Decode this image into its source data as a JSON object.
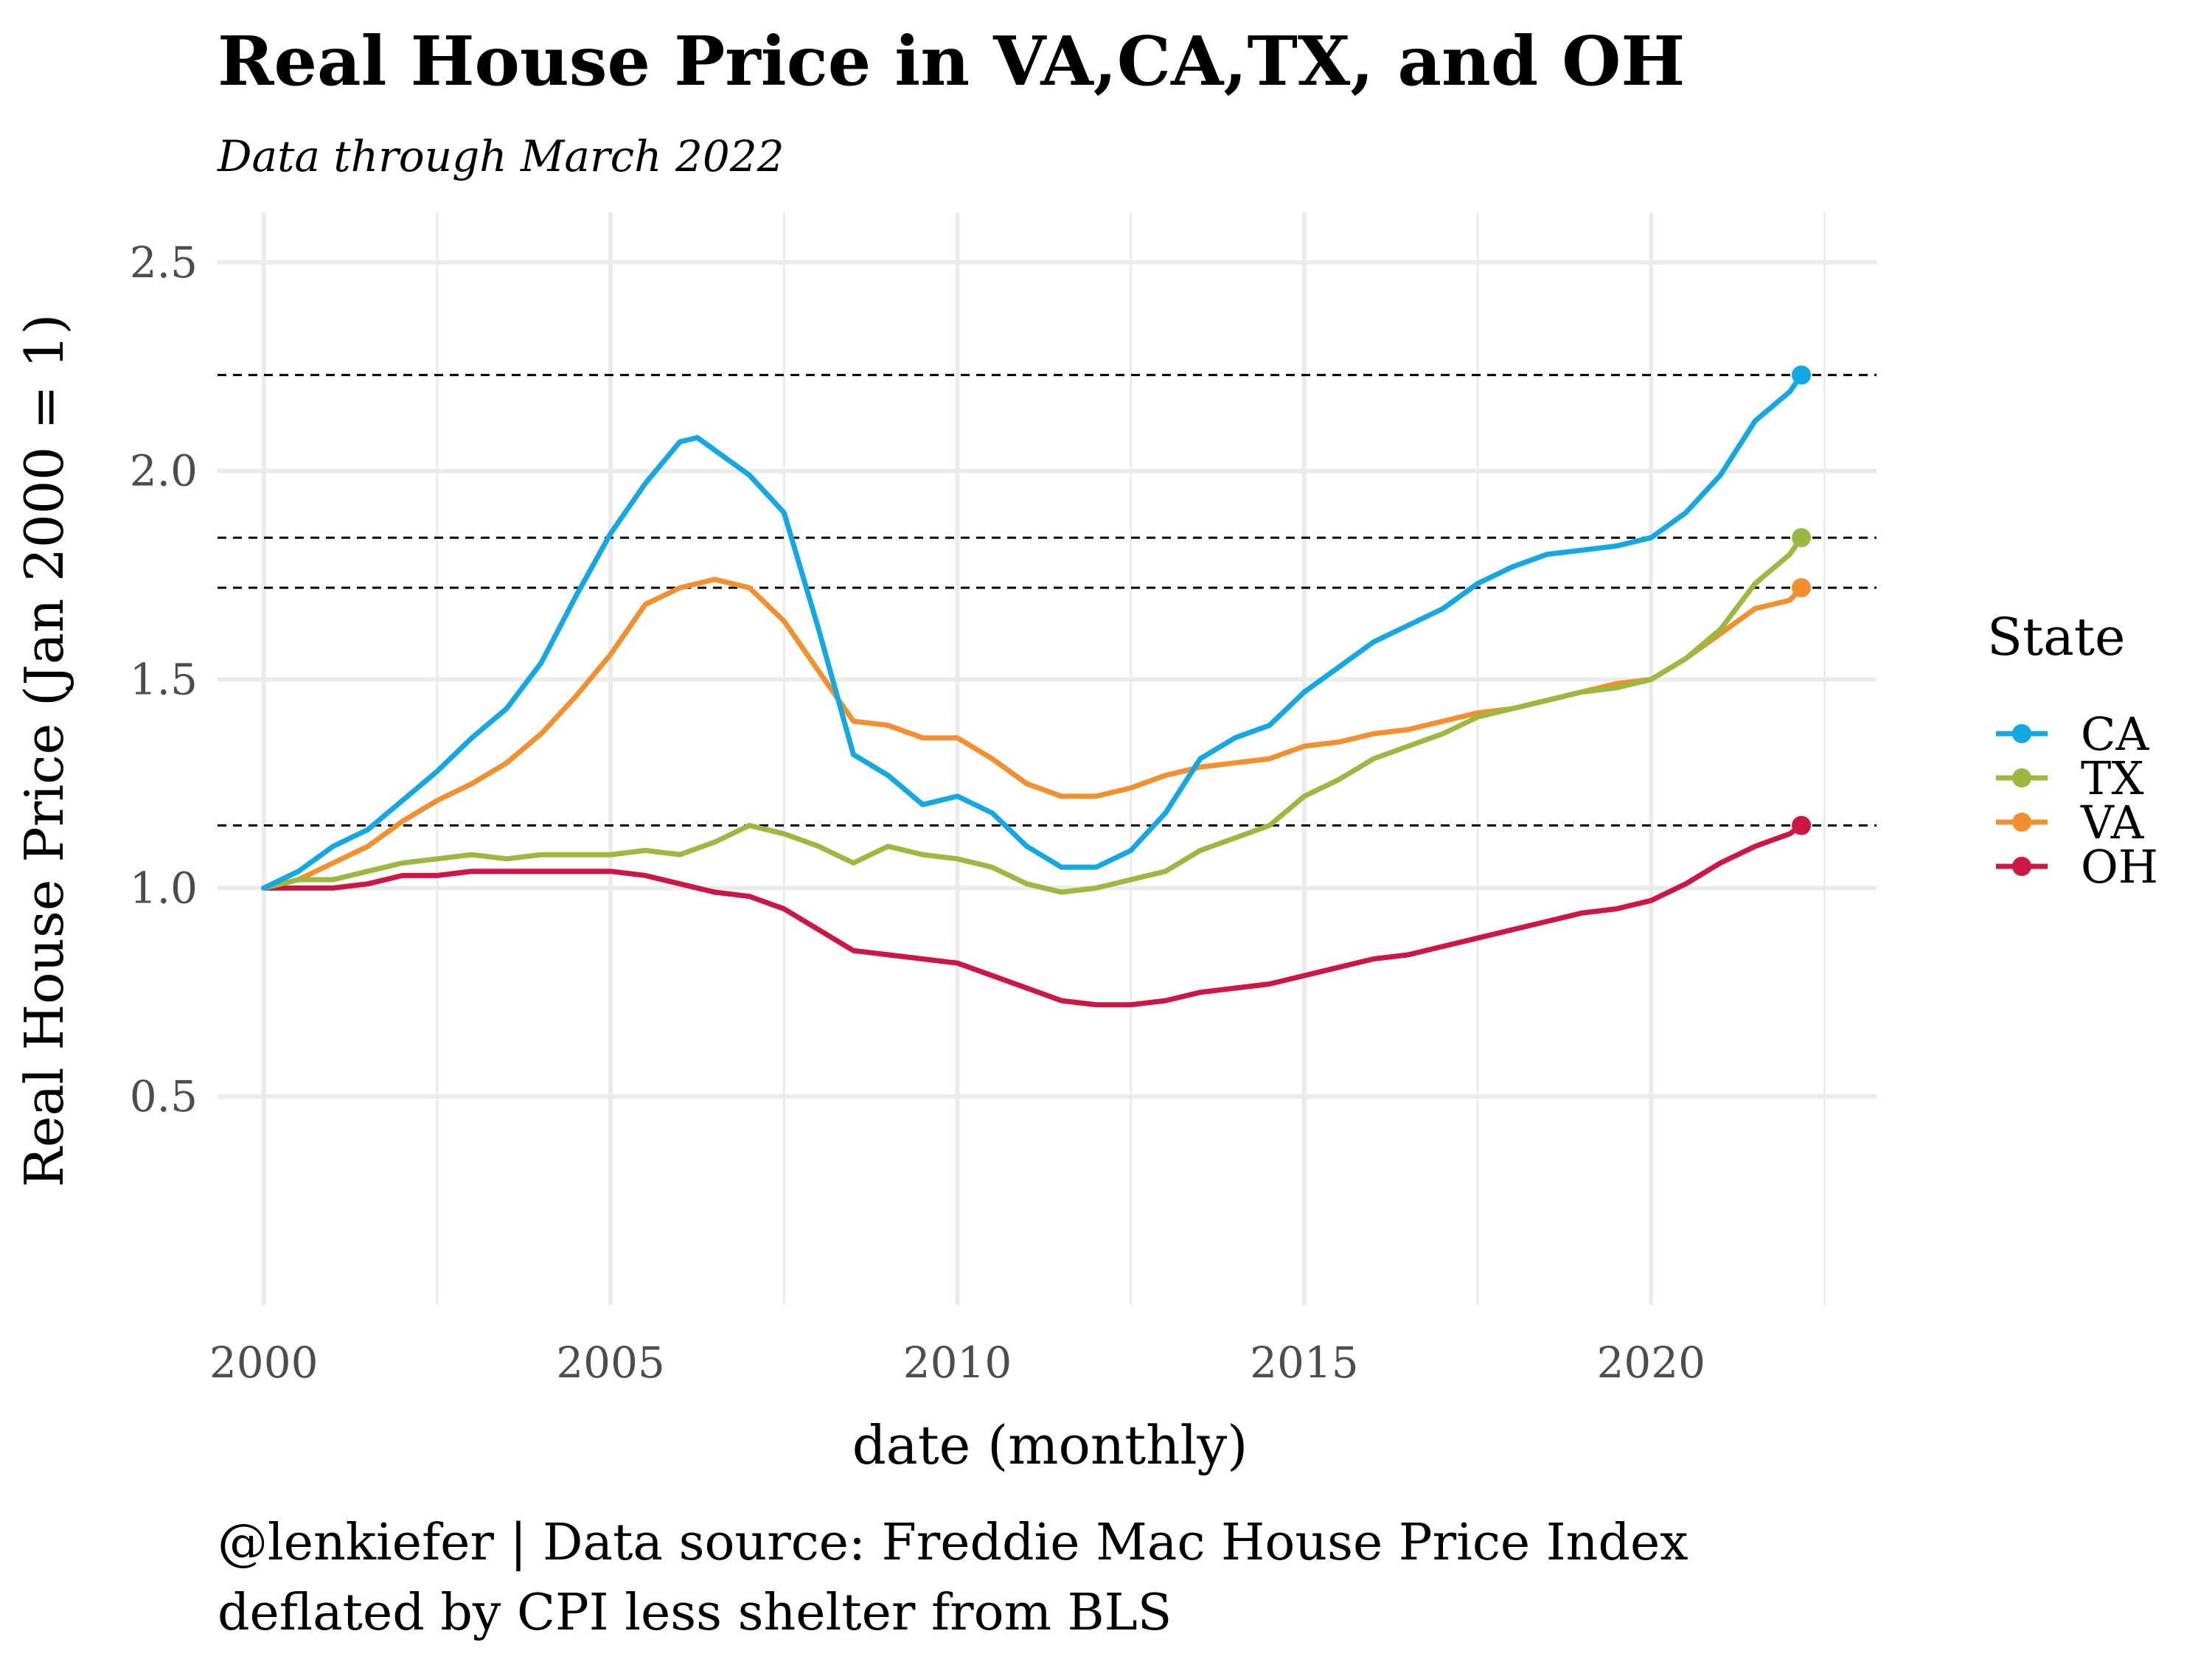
{
  "chart_data": {
    "type": "line",
    "title": "Real House Price in VA,CA,TX, and OH",
    "subtitle": "Data through March 2022",
    "xlabel": "date (monthly)",
    "ylabel": "Real House Price (Jan 2000 = 1)",
    "caption_lines": [
      "@lenkiefer | Data source: Freddie Mac House Price Index",
      "deflated by CPI less shelter from BLS"
    ],
    "xlim": [
      "1999-05",
      "2023-04"
    ],
    "ylim": [
      0,
      2.62
    ],
    "x_ticks": [
      "2000",
      "2005",
      "2010",
      "2015",
      "2020"
    ],
    "x_tick_dates": [
      "2000-01",
      "2005-01",
      "2010-01",
      "2015-01",
      "2020-01"
    ],
    "x_minor_grid": [
      "2002-07",
      "2007-07",
      "2012-07",
      "2017-07",
      "2022-07"
    ],
    "y_ticks": [
      0.5,
      1.0,
      1.5,
      2.0,
      2.5
    ],
    "y_tick_labels": [
      "0.5",
      "1.0",
      "1.5",
      "2.0",
      "2.5"
    ],
    "grid": true,
    "legend": {
      "title": "State",
      "placement": "right"
    },
    "reference_lines": [
      2.23,
      1.84,
      1.72,
      1.15
    ],
    "series": [
      {
        "name": "CA",
        "color": "#12a8e4",
        "points": [
          [
            "2000-01",
            1.0
          ],
          [
            "2000-07",
            1.04
          ],
          [
            "2001-01",
            1.1
          ],
          [
            "2001-07",
            1.14
          ],
          [
            "2002-01",
            1.21
          ],
          [
            "2002-07",
            1.28
          ],
          [
            "2003-01",
            1.36
          ],
          [
            "2003-07",
            1.43
          ],
          [
            "2004-01",
            1.54
          ],
          [
            "2004-07",
            1.7
          ],
          [
            "2005-01",
            1.85
          ],
          [
            "2005-07",
            1.97
          ],
          [
            "2006-01",
            2.07
          ],
          [
            "2006-04",
            2.08
          ],
          [
            "2006-07",
            2.05
          ],
          [
            "2007-01",
            1.99
          ],
          [
            "2007-07",
            1.9
          ],
          [
            "2008-01",
            1.62
          ],
          [
            "2008-07",
            1.32
          ],
          [
            "2009-01",
            1.27
          ],
          [
            "2009-07",
            1.2
          ],
          [
            "2010-01",
            1.22
          ],
          [
            "2010-07",
            1.18
          ],
          [
            "2011-01",
            1.1
          ],
          [
            "2011-07",
            1.05
          ],
          [
            "2012-01",
            1.05
          ],
          [
            "2012-07",
            1.09
          ],
          [
            "2013-01",
            1.18
          ],
          [
            "2013-07",
            1.31
          ],
          [
            "2014-01",
            1.36
          ],
          [
            "2014-07",
            1.39
          ],
          [
            "2015-01",
            1.47
          ],
          [
            "2015-07",
            1.53
          ],
          [
            "2016-01",
            1.59
          ],
          [
            "2016-07",
            1.63
          ],
          [
            "2017-01",
            1.67
          ],
          [
            "2017-07",
            1.73
          ],
          [
            "2018-01",
            1.77
          ],
          [
            "2018-07",
            1.8
          ],
          [
            "2019-01",
            1.81
          ],
          [
            "2019-07",
            1.82
          ],
          [
            "2020-01",
            1.84
          ],
          [
            "2020-07",
            1.9
          ],
          [
            "2021-01",
            1.99
          ],
          [
            "2021-07",
            2.12
          ],
          [
            "2022-01",
            2.19
          ],
          [
            "2022-03",
            2.23
          ]
        ]
      },
      {
        "name": "TX",
        "color": "#9cb83f",
        "points": [
          [
            "2000-01",
            1.0
          ],
          [
            "2000-07",
            1.02
          ],
          [
            "2001-01",
            1.02
          ],
          [
            "2001-07",
            1.04
          ],
          [
            "2002-01",
            1.06
          ],
          [
            "2002-07",
            1.07
          ],
          [
            "2003-01",
            1.08
          ],
          [
            "2003-07",
            1.07
          ],
          [
            "2004-01",
            1.08
          ],
          [
            "2004-07",
            1.08
          ],
          [
            "2005-01",
            1.08
          ],
          [
            "2005-07",
            1.09
          ],
          [
            "2006-01",
            1.08
          ],
          [
            "2006-07",
            1.11
          ],
          [
            "2007-01",
            1.15
          ],
          [
            "2007-07",
            1.13
          ],
          [
            "2008-01",
            1.1
          ],
          [
            "2008-07",
            1.06
          ],
          [
            "2009-01",
            1.1
          ],
          [
            "2009-07",
            1.08
          ],
          [
            "2010-01",
            1.07
          ],
          [
            "2010-07",
            1.05
          ],
          [
            "2011-01",
            1.01
          ],
          [
            "2011-07",
            0.99
          ],
          [
            "2012-01",
            1.0
          ],
          [
            "2012-07",
            1.02
          ],
          [
            "2013-01",
            1.04
          ],
          [
            "2013-07",
            1.09
          ],
          [
            "2014-01",
            1.12
          ],
          [
            "2014-07",
            1.15
          ],
          [
            "2015-01",
            1.22
          ],
          [
            "2015-07",
            1.26
          ],
          [
            "2016-01",
            1.31
          ],
          [
            "2016-07",
            1.34
          ],
          [
            "2017-01",
            1.37
          ],
          [
            "2017-07",
            1.41
          ],
          [
            "2018-01",
            1.43
          ],
          [
            "2018-07",
            1.45
          ],
          [
            "2019-01",
            1.47
          ],
          [
            "2019-07",
            1.48
          ],
          [
            "2020-01",
            1.5
          ],
          [
            "2020-07",
            1.55
          ],
          [
            "2021-01",
            1.62
          ],
          [
            "2021-07",
            1.73
          ],
          [
            "2022-01",
            1.8
          ],
          [
            "2022-03",
            1.84
          ]
        ]
      },
      {
        "name": "VA",
        "color": "#f48f2e",
        "points": [
          [
            "2000-01",
            1.0
          ],
          [
            "2000-07",
            1.02
          ],
          [
            "2001-01",
            1.06
          ],
          [
            "2001-07",
            1.1
          ],
          [
            "2002-01",
            1.16
          ],
          [
            "2002-07",
            1.21
          ],
          [
            "2003-01",
            1.25
          ],
          [
            "2003-07",
            1.3
          ],
          [
            "2004-01",
            1.37
          ],
          [
            "2004-07",
            1.46
          ],
          [
            "2005-01",
            1.56
          ],
          [
            "2005-07",
            1.68
          ],
          [
            "2006-01",
            1.72
          ],
          [
            "2006-07",
            1.74
          ],
          [
            "2007-01",
            1.72
          ],
          [
            "2007-07",
            1.64
          ],
          [
            "2008-01",
            1.52
          ],
          [
            "2008-07",
            1.4
          ],
          [
            "2009-01",
            1.39
          ],
          [
            "2009-07",
            1.36
          ],
          [
            "2010-01",
            1.36
          ],
          [
            "2010-07",
            1.31
          ],
          [
            "2011-01",
            1.25
          ],
          [
            "2011-07",
            1.22
          ],
          [
            "2012-01",
            1.22
          ],
          [
            "2012-07",
            1.24
          ],
          [
            "2013-01",
            1.27
          ],
          [
            "2013-07",
            1.29
          ],
          [
            "2014-01",
            1.3
          ],
          [
            "2014-07",
            1.31
          ],
          [
            "2015-01",
            1.34
          ],
          [
            "2015-07",
            1.35
          ],
          [
            "2016-01",
            1.37
          ],
          [
            "2016-07",
            1.38
          ],
          [
            "2017-01",
            1.4
          ],
          [
            "2017-07",
            1.42
          ],
          [
            "2018-01",
            1.43
          ],
          [
            "2018-07",
            1.45
          ],
          [
            "2019-01",
            1.47
          ],
          [
            "2019-07",
            1.49
          ],
          [
            "2020-01",
            1.5
          ],
          [
            "2020-07",
            1.55
          ],
          [
            "2021-01",
            1.61
          ],
          [
            "2021-07",
            1.67
          ],
          [
            "2022-01",
            1.69
          ],
          [
            "2022-03",
            1.72
          ]
        ]
      },
      {
        "name": "OH",
        "color": "#cf1544",
        "points": [
          [
            "2000-01",
            1.0
          ],
          [
            "2000-07",
            1.0
          ],
          [
            "2001-01",
            1.0
          ],
          [
            "2001-07",
            1.01
          ],
          [
            "2002-01",
            1.03
          ],
          [
            "2002-07",
            1.03
          ],
          [
            "2003-01",
            1.04
          ],
          [
            "2003-07",
            1.04
          ],
          [
            "2004-01",
            1.04
          ],
          [
            "2004-07",
            1.04
          ],
          [
            "2005-01",
            1.04
          ],
          [
            "2005-07",
            1.03
          ],
          [
            "2006-01",
            1.01
          ],
          [
            "2006-07",
            0.99
          ],
          [
            "2007-01",
            0.98
          ],
          [
            "2007-07",
            0.95
          ],
          [
            "2008-01",
            0.9
          ],
          [
            "2008-07",
            0.85
          ],
          [
            "2009-01",
            0.84
          ],
          [
            "2009-07",
            0.83
          ],
          [
            "2010-01",
            0.82
          ],
          [
            "2010-07",
            0.79
          ],
          [
            "2011-01",
            0.76
          ],
          [
            "2011-07",
            0.73
          ],
          [
            "2012-01",
            0.72
          ],
          [
            "2012-07",
            0.72
          ],
          [
            "2013-01",
            0.73
          ],
          [
            "2013-07",
            0.75
          ],
          [
            "2014-01",
            0.76
          ],
          [
            "2014-07",
            0.77
          ],
          [
            "2015-01",
            0.79
          ],
          [
            "2015-07",
            0.81
          ],
          [
            "2016-01",
            0.83
          ],
          [
            "2016-07",
            0.84
          ],
          [
            "2017-01",
            0.86
          ],
          [
            "2017-07",
            0.88
          ],
          [
            "2018-01",
            0.9
          ],
          [
            "2018-07",
            0.92
          ],
          [
            "2019-01",
            0.94
          ],
          [
            "2019-07",
            0.95
          ],
          [
            "2020-01",
            0.97
          ],
          [
            "2020-07",
            1.01
          ],
          [
            "2021-01",
            1.06
          ],
          [
            "2021-07",
            1.1
          ],
          [
            "2022-01",
            1.13
          ],
          [
            "2022-03",
            1.15
          ]
        ]
      }
    ]
  }
}
